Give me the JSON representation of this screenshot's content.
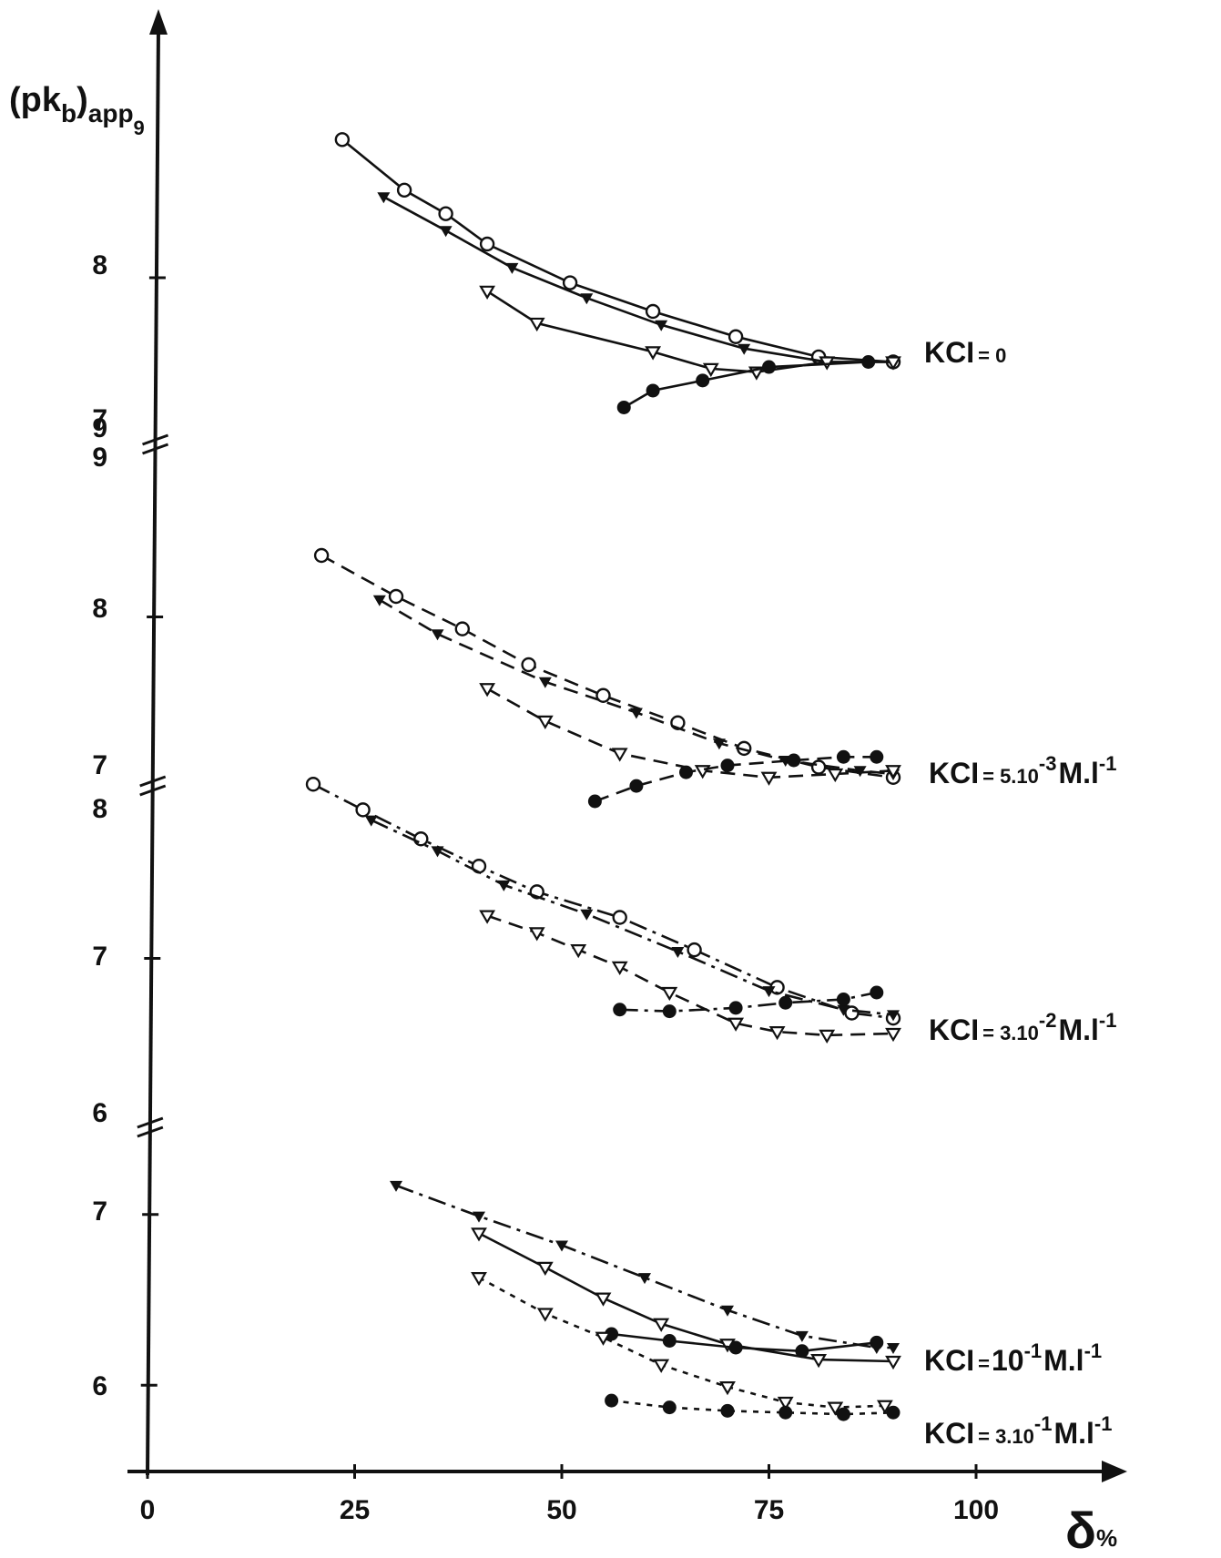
{
  "chart_data": {
    "type": "line",
    "y_axis_label": {
      "main": "(pk",
      "sub1": "b",
      "mid": ")",
      "sub2": "app",
      "sup": "9"
    },
    "x_axis_label": {
      "main": "δ",
      "unit": "%"
    },
    "x_ticks": [
      "0",
      "25",
      "50",
      "75",
      "100"
    ],
    "x_range": [
      0,
      110
    ],
    "panels": [
      {
        "label": "KCI = 0",
        "label_parts": {
          "main": "KCI",
          "eq": "= 0",
          "sup": "",
          "unit": "",
          "unit_sup": ""
        },
        "y_range": [
          7,
          9
        ],
        "y_ticks": [
          "9",
          "8",
          "7"
        ],
        "y_tick_values": [
          9,
          8,
          7
        ],
        "series": [
          {
            "marker": "open-circle",
            "dash": "solid",
            "x": [
              23.5,
              31,
              36,
              41,
              51,
              61,
              71,
              81,
              90
            ],
            "y": [
              8.82,
              8.52,
              8.38,
              8.2,
              7.97,
              7.8,
              7.65,
              7.53,
              7.5
            ]
          },
          {
            "marker": "filled-triangle",
            "dash": "solid",
            "x": [
              28.5,
              36,
              44,
              53,
              62,
              72,
              82,
              90
            ],
            "y": [
              8.48,
              8.28,
              8.06,
              7.88,
              7.72,
              7.58,
              7.5,
              7.5
            ]
          },
          {
            "marker": "open-triangle",
            "dash": "solid",
            "x": [
              41,
              47,
              61,
              68,
              73.5,
              82,
              90
            ],
            "y": [
              7.92,
              7.73,
              7.56,
              7.46,
              7.44,
              7.5,
              7.5
            ]
          },
          {
            "marker": "filled-circle",
            "dash": "solid",
            "x": [
              57.5,
              61,
              67,
              75,
              87
            ],
            "y": [
              7.23,
              7.33,
              7.39,
              7.47,
              7.5
            ]
          }
        ]
      },
      {
        "label": "KCI = 5.10-3 M.l-1",
        "label_parts": {
          "main": "KCI",
          "eq": "= 5.10",
          "sup": "-3",
          "unit": "M.l",
          "unit_sup": "-1"
        },
        "y_range": [
          7,
          9
        ],
        "y_ticks": [
          "9",
          "8",
          "7"
        ],
        "y_tick_values": [
          9,
          8,
          7
        ],
        "series": [
          {
            "marker": "open-circle",
            "dash": "dashed",
            "x": [
              21,
              30,
              38,
              46,
              55,
              64,
              72,
              81,
              90
            ],
            "y": [
              8.36,
              8.12,
              7.93,
              7.72,
              7.54,
              7.38,
              7.23,
              7.12,
              7.06
            ]
          },
          {
            "marker": "filled-triangle",
            "dash": "dashed",
            "x": [
              28,
              35,
              48,
              59,
              69,
              77,
              86,
              90
            ],
            "y": [
              8.1,
              7.9,
              7.62,
              7.44,
              7.26,
              7.16,
              7.1,
              7.08
            ]
          },
          {
            "marker": "open-triangle",
            "dash": "dashed",
            "x": [
              41,
              48,
              57,
              67,
              75,
              83,
              90
            ],
            "y": [
              7.58,
              7.39,
              7.2,
              7.1,
              7.06,
              7.08,
              7.1
            ]
          },
          {
            "marker": "filled-circle",
            "dash": "dashed",
            "x": [
              54,
              59,
              65,
              70,
              78,
              84,
              88
            ],
            "y": [
              6.92,
              7.01,
              7.09,
              7.13,
              7.16,
              7.18,
              7.18
            ]
          }
        ]
      },
      {
        "label": "KCI = 3.10-2 M.l-1",
        "label_parts": {
          "main": "KCI",
          "eq": "= 3.10",
          "sup": "-2",
          "unit": "M.l",
          "unit_sup": "-1"
        },
        "y_range": [
          6,
          8
        ],
        "y_ticks": [
          "8",
          "7",
          "6"
        ],
        "y_tick_values": [
          8,
          7,
          6
        ],
        "series": [
          {
            "marker": "open-circle",
            "dash": "dash-dot",
            "x": [
              20,
              26,
              33,
              40,
              47,
              57,
              66,
              76,
              85,
              90
            ],
            "y": [
              8.02,
              7.87,
              7.7,
              7.54,
              7.39,
              7.24,
              7.05,
              6.83,
              6.68,
              6.65
            ]
          },
          {
            "marker": "filled-triangle",
            "dash": "dash-dot",
            "x": [
              27,
              35,
              43,
              53,
              64,
              75,
              84,
              90
            ],
            "y": [
              7.81,
              7.63,
              7.43,
              7.26,
              7.04,
              6.81,
              6.7,
              6.67
            ]
          },
          {
            "marker": "open-triangle",
            "dash": "dashed",
            "x": [
              41,
              47,
              52,
              57,
              63,
              71,
              76,
              82,
              90
            ],
            "y": [
              7.25,
              7.15,
              7.05,
              6.95,
              6.8,
              6.62,
              6.57,
              6.55,
              6.56
            ]
          },
          {
            "marker": "filled-circle",
            "dash": "dash-dot",
            "x": [
              57,
              63,
              71,
              77,
              84,
              88
            ],
            "y": [
              6.7,
              6.69,
              6.71,
              6.74,
              6.76,
              6.8
            ]
          }
        ]
      },
      {
        "label": "KCI = 10-1 M.l-1",
        "label_parts": {
          "main": "KCI",
          "eq": "=",
          "sup": "",
          "unit": "10",
          "unit_sup": "-1",
          "unit2": "M.l",
          "unit2_sup": "-1"
        },
        "y_range": [
          5.5,
          7.5
        ],
        "y_ticks": [
          "7",
          "6"
        ],
        "y_tick_values": [
          7,
          6
        ],
        "series": [
          {
            "marker": "filled-triangle",
            "dash": "dash-dot",
            "x": [
              30,
              40,
              50,
              60,
              70,
              79,
              88,
              90
            ],
            "y": [
              7.17,
              6.99,
              6.82,
              6.63,
              6.44,
              6.29,
              6.22,
              6.22
            ]
          },
          {
            "marker": "open-triangle",
            "dash": "solid",
            "x": [
              40,
              48,
              55,
              62,
              70,
              81,
              90
            ],
            "y": [
              6.89,
              6.69,
              6.51,
              6.36,
              6.24,
              6.15,
              6.14
            ]
          },
          {
            "marker": "filled-circle",
            "dash": "solid",
            "x": [
              56,
              63,
              71,
              79,
              88
            ],
            "y": [
              6.3,
              6.26,
              6.22,
              6.2,
              6.25
            ]
          }
        ]
      },
      {
        "label": "KCI = 3.10-1 M.l-1",
        "label_parts": {
          "main": "KCI",
          "eq": "= 3.10",
          "sup": "-1",
          "unit": "M.l",
          "unit_sup": "-1"
        },
        "y_range": [
          5.5,
          7.5
        ],
        "y_ticks": [],
        "y_tick_values": [],
        "series": [
          {
            "marker": "open-triangle",
            "dash": "dotted",
            "x": [
              40,
              48,
              55,
              62,
              70,
              77,
              83,
              89
            ],
            "y": [
              6.63,
              6.42,
              6.28,
              6.12,
              5.99,
              5.9,
              5.87,
              5.88
            ]
          },
          {
            "marker": "filled-circle",
            "dash": "dotted",
            "x": [
              56,
              63,
              70,
              77,
              84,
              90
            ],
            "y": [
              5.91,
              5.87,
              5.85,
              5.84,
              5.83,
              5.84
            ]
          }
        ]
      }
    ]
  }
}
